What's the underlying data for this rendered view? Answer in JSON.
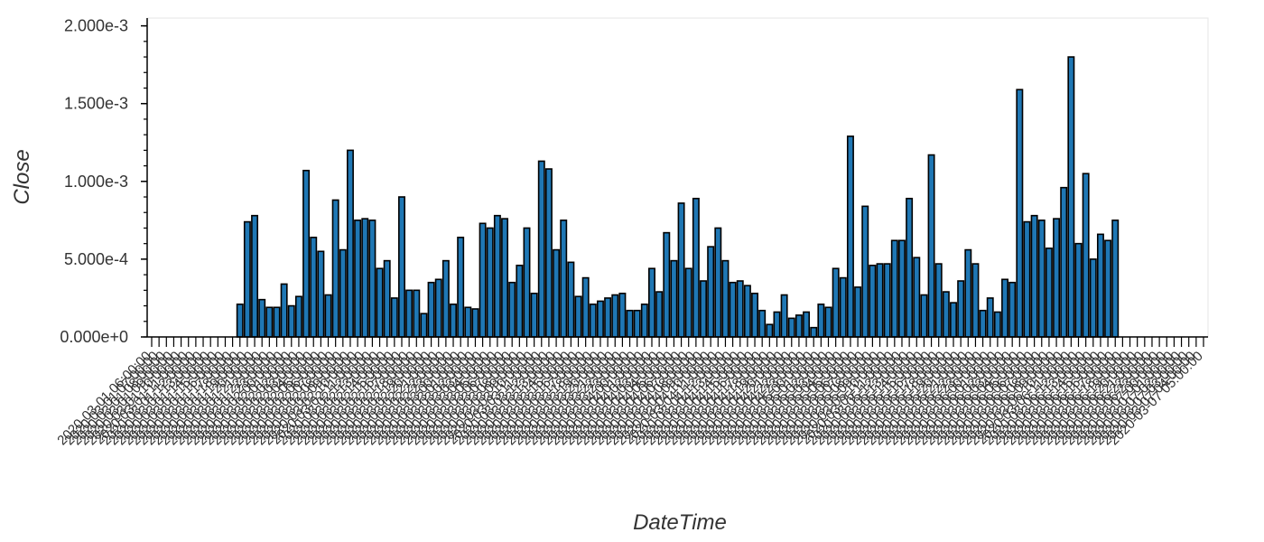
{
  "chart_data": {
    "type": "bar",
    "xlabel": "DateTime",
    "ylabel": "Close",
    "ylim": [
      0,
      0.00205
    ],
    "y_ticks": [
      {
        "value": 0,
        "label": "0.000e+0"
      },
      {
        "value": 0.0005,
        "label": "5.000e-4"
      },
      {
        "value": 0.001,
        "label": "1.000e-3"
      },
      {
        "value": 0.0015,
        "label": "1.500e-3"
      },
      {
        "value": 0.002,
        "label": "2.000e-3"
      }
    ],
    "y_minor_step": 0.0001,
    "grid": false,
    "legend": "none",
    "colors": {
      "bar_fill": "#1f77b4",
      "bar_stroke": "#000000",
      "axis": "#000000",
      "frame": "#e5e5e5"
    },
    "first_category_label": "2020-03-01 06:00:00",
    "last_category_label": "2020-03-07 05:00:00",
    "categories_count": 144,
    "values": [
      0,
      0,
      0,
      0,
      0,
      0,
      0,
      0,
      0,
      0,
      0,
      0,
      0.00021,
      0.00074,
      0.00078,
      0.00024,
      0.00019,
      0.00019,
      0.00034,
      0.0002,
      0.00026,
      0.00107,
      0.00064,
      0.00055,
      0.00027,
      0.00088,
      0.00056,
      0.0012,
      0.00075,
      0.00076,
      0.00075,
      0.00044,
      0.00049,
      0.00025,
      0.0009,
      0.0003,
      0.0003,
      0.00015,
      0.00035,
      0.00037,
      0.00049,
      0.00021,
      0.00064,
      0.00019,
      0.00018,
      0.00073,
      0.0007,
      0.00078,
      0.00076,
      0.00035,
      0.00046,
      0.0007,
      0.00028,
      0.00113,
      0.00108,
      0.00056,
      0.00075,
      0.00048,
      0.00026,
      0.00038,
      0.00021,
      0.00023,
      0.00025,
      0.00027,
      0.00028,
      0.00017,
      0.00017,
      0.00021,
      0.00044,
      0.00029,
      0.00067,
      0.00049,
      0.00086,
      0.00044,
      0.00089,
      0.00036,
      0.00058,
      0.0007,
      0.00049,
      0.00035,
      0.00036,
      0.00033,
      0.00028,
      0.00017,
      8e-05,
      0.00016,
      0.00027,
      0.00012,
      0.00014,
      0.00016,
      6e-05,
      0.00021,
      0.00019,
      0.00044,
      0.00038,
      0.00129,
      0.00032,
      0.00084,
      0.00046,
      0.00047,
      0.00047,
      0.00062,
      0.00062,
      0.00089,
      0.00051,
      0.00027,
      0.00117,
      0.00047,
      0.00029,
      0.00022,
      0.00036,
      0.00056,
      0.00047,
      0.00017,
      0.00025,
      0.00016,
      0.00037,
      0.00035,
      0.00159,
      0.00074,
      0.00078,
      0.00075,
      0.00057,
      0.00076,
      0.00096,
      0.0018,
      0.0006,
      0.00105,
      0.0005,
      0.00066,
      0.00062,
      0.00075,
      0,
      0,
      0,
      0,
      0,
      0,
      0,
      0,
      0,
      0,
      0,
      0
    ]
  }
}
